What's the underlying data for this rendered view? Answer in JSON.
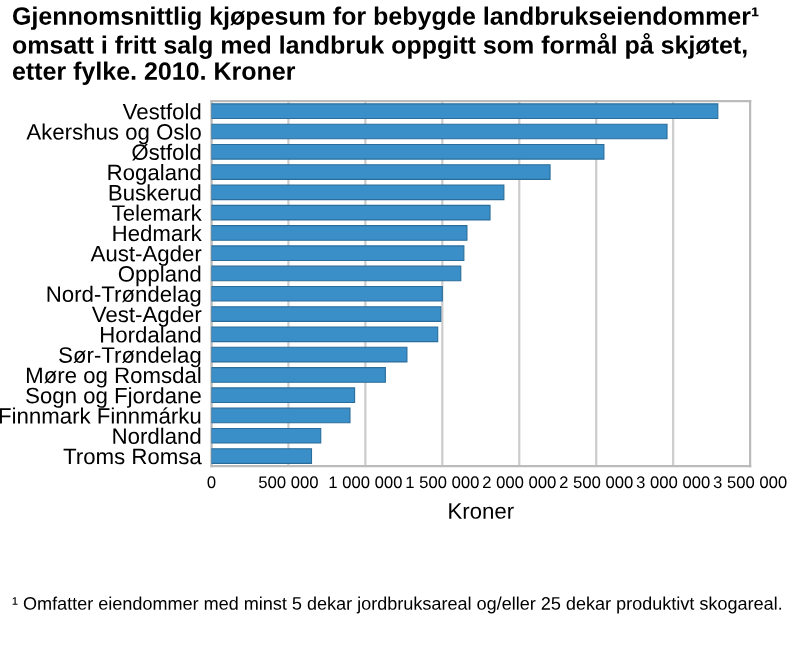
{
  "chart_data": {
    "type": "bar",
    "orientation": "horizontal",
    "title": "Gjennomsnittlig kjøpesum for bebygde landbrukseiendommer¹ omsatt i fritt salg med landbruk oppgitt som formål på skjøtet, etter fylke. 2010. Kroner",
    "xlabel": "Kroner",
    "categories": [
      "Vestfold",
      "Akershus og Oslo",
      "Østfold",
      "Rogaland",
      "Buskerud",
      "Telemark",
      "Hedmark",
      "Aust-Agder",
      "Oppland",
      "Nord-Trøndelag",
      "Vest-Agder",
      "Hordaland",
      "Sør-Trøndelag",
      "Møre og Romsdal",
      "Sogn og Fjordane",
      "Finnmark Finnmárku",
      "Nordland",
      "Troms Romsa"
    ],
    "values": [
      3290000,
      2960000,
      2550000,
      2200000,
      1900000,
      1810000,
      1660000,
      1640000,
      1620000,
      1500000,
      1490000,
      1470000,
      1270000,
      1130000,
      930000,
      900000,
      710000,
      650000
    ],
    "color": "#3a8fc8",
    "xlim": [
      0,
      3500000
    ],
    "xticks": [
      {
        "value": 0,
        "label": "0"
      },
      {
        "value": 500000,
        "label": "500 000"
      },
      {
        "value": 1000000,
        "label": "1 000 000"
      },
      {
        "value": 1500000,
        "label": "1 500 000"
      },
      {
        "value": 2000000,
        "label": "2 000 000"
      },
      {
        "value": 2500000,
        "label": "2 500 000"
      },
      {
        "value": 3000000,
        "label": "3 000 000"
      },
      {
        "value": 3500000,
        "label": "3 500 000"
      }
    ],
    "grid": "x",
    "annotations": [
      "¹ Omfatter eiendommer med minst 5 dekar jordbruksareal og/eller 25 dekar produktivt skogareal."
    ]
  }
}
